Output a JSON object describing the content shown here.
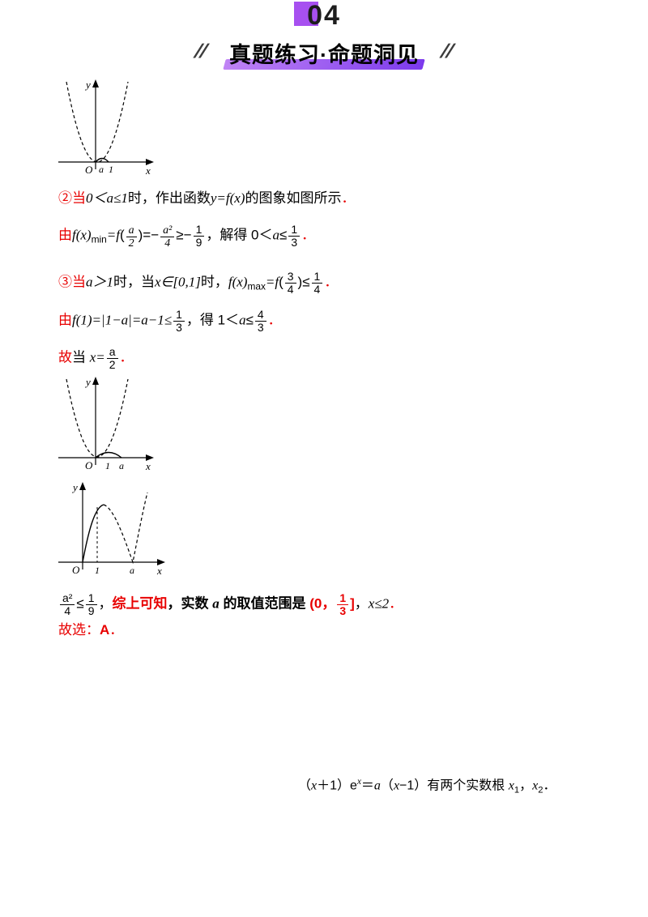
{
  "solution": {
    "lines": [
      {
        "segments": [
          {
            "t": "②当",
            "c": "red"
          },
          {
            "t": "0＜a≤1",
            "c": "it"
          },
          {
            "t": "时，作出函数"
          },
          {
            "t": "y=f(x)",
            "c": "it"
          },
          {
            "t": "的图象如图所示"
          },
          {
            "t": "．",
            "c": "red"
          }
        ]
      },
      {
        "segments": [
          {
            "t": "由",
            "c": "red"
          },
          {
            "t": "f(x)",
            "c": "it"
          },
          {
            "t": "min",
            "c": "sub"
          },
          {
            "t": "=f",
            "c": "it"
          },
          {
            "t": "("
          },
          {
            "f": [
              "a",
              "2"
            ],
            "c": "it"
          },
          {
            "t": ")=−"
          },
          {
            "f": [
              "a²",
              "4"
            ],
            "c": "it"
          },
          {
            "t": "≥−"
          },
          {
            "f": [
              "1",
              "9"
            ]
          },
          {
            "t": "，解得 0＜"
          },
          {
            "t": "a",
            "c": "it"
          },
          {
            "t": "≤"
          },
          {
            "f": [
              "1",
              "3"
            ]
          },
          {
            "t": "．",
            "c": "red"
          }
        ]
      },
      {
        "segments": [
          {
            "t": "③当",
            "c": "red"
          },
          {
            "t": "a＞1",
            "c": "it"
          },
          {
            "t": "时，当"
          },
          {
            "t": "x∈[0,1]",
            "c": "it"
          },
          {
            "t": "时，"
          },
          {
            "t": "f(x)",
            "c": "it"
          },
          {
            "t": "max",
            "c": "sub"
          },
          {
            "t": "=f",
            "c": "it"
          },
          {
            "t": "("
          },
          {
            "f": [
              "3",
              "4"
            ]
          },
          {
            "t": ")≤"
          },
          {
            "f": [
              "1",
              "4"
            ]
          },
          {
            "t": "．",
            "c": "red"
          }
        ]
      },
      {
        "segments": [
          {
            "t": "由",
            "c": "red"
          },
          {
            "t": "f(1)=|1−a|=a−1≤",
            "c": "it"
          },
          {
            "f": [
              "1",
              "3"
            ]
          },
          {
            "t": "，得 1＜"
          },
          {
            "t": "a",
            "c": "it"
          },
          {
            "t": "≤"
          },
          {
            "f": [
              "4",
              "3"
            ]
          },
          {
            "t": "．",
            "c": "red"
          }
        ]
      },
      {
        "segments": [
          {
            "t": "故",
            "c": "red"
          },
          {
            "t": "当 "
          },
          {
            "t": "x=",
            "c": "it"
          },
          {
            "f": [
              "a",
              "2"
            ]
          },
          {
            "t": "．",
            "c": "red"
          }
        ]
      },
      {
        "segments": [
          {
            "f": [
              "a²",
              "4"
            ]
          },
          {
            "t": "≤"
          },
          {
            "f": [
              "1",
              "9"
            ]
          },
          {
            "t": "，"
          },
          {
            "t": "综上可知",
            "c": "red bold"
          },
          {
            "t": "，实数 ",
            "c": "bold"
          },
          {
            "t": "a",
            "c": "bold it"
          },
          {
            "t": " 的取值范围是 ",
            "c": "bold"
          },
          {
            "t": "(0，",
            "c": "red bold"
          },
          {
            "f": [
              "1",
              "3"
            ],
            "c": "red bold"
          },
          {
            "t": "]",
            "c": "red bold"
          },
          {
            "t": "，"
          },
          {
            "t": "x≤2",
            "c": "it"
          },
          {
            "t": "．",
            "c": "red"
          }
        ]
      },
      {
        "segments": [
          {
            "t": "故选：",
            "c": "red"
          },
          {
            "t": "A",
            "c": "red bold"
          },
          {
            "t": "．",
            "c": "red"
          }
        ]
      },
      {
        "segments": [
          {
            "t": "（"
          },
          {
            "t": "x",
            "c": "it"
          },
          {
            "t": "＋1）e"
          },
          {
            "t": "x",
            "c": "sup it"
          },
          {
            "t": "＝"
          },
          {
            "t": "a",
            "c": "it"
          },
          {
            "t": "（"
          },
          {
            "t": "x",
            "c": "it"
          },
          {
            "t": "−1）有两个实数根 "
          },
          {
            "t": "x",
            "c": "it"
          },
          {
            "t": "1",
            "c": "sub"
          },
          {
            "t": "，"
          },
          {
            "t": "x",
            "c": "it"
          },
          {
            "t": "2",
            "c": "sub"
          },
          {
            "t": "．"
          }
        ]
      }
    ]
  },
  "graphs": [
    {
      "origin": "O",
      "x_label": "x",
      "y_label": "y",
      "tick1": "a",
      "tick2": "1"
    },
    {
      "origin": "O",
      "x_label": "x",
      "y_label": "y",
      "tick1": "1",
      "tick2": "a"
    },
    {
      "origin": "O",
      "x_label": "x",
      "y_label": "y",
      "tick1": "1",
      "tick2": "a"
    }
  ],
  "banner": {
    "number": "04",
    "title": "真题练习·命题洞见",
    "slash": "//",
    "accent_color": "#a750f0"
  },
  "colors": {
    "red": "#e80000",
    "purple": "#a750f0"
  }
}
